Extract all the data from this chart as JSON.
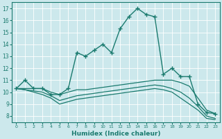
{
  "xlabel": "Humidex (Indice chaleur)",
  "bg_color": "#cce8ec",
  "line_color": "#1a7a6e",
  "grid_color": "#b0d8dc",
  "xlim": [
    -0.5,
    23.5
  ],
  "ylim": [
    7.5,
    17.5
  ],
  "xticks": [
    0,
    1,
    2,
    3,
    4,
    5,
    6,
    7,
    8,
    9,
    10,
    11,
    12,
    13,
    14,
    15,
    16,
    17,
    18,
    19,
    20,
    21,
    22,
    23
  ],
  "yticks": [
    8,
    9,
    10,
    11,
    12,
    13,
    14,
    15,
    16,
    17
  ],
  "lines": [
    {
      "x": [
        0,
        1,
        2,
        3,
        4,
        5,
        6,
        7,
        8,
        9,
        10,
        11,
        12,
        13,
        14,
        15,
        16,
        17,
        18,
        19,
        20,
        21,
        22,
        23
      ],
      "y": [
        10.3,
        11.0,
        10.3,
        10.3,
        9.8,
        9.8,
        10.3,
        13.3,
        13.0,
        13.5,
        14.0,
        13.3,
        15.3,
        16.3,
        17.0,
        16.5,
        16.3,
        11.5,
        12.0,
        11.3,
        11.3,
        9.0,
        8.3,
        8.2
      ],
      "marker": "+",
      "markersize": 4.0,
      "lw": 1.0
    },
    {
      "x": [
        0,
        1,
        2,
        3,
        4,
        5,
        6,
        7,
        8,
        9,
        10,
        11,
        12,
        13,
        14,
        15,
        16,
        17,
        18,
        19,
        20,
        21,
        22,
        23
      ],
      "y": [
        10.3,
        10.3,
        10.3,
        10.3,
        10.0,
        9.8,
        10.0,
        10.2,
        10.2,
        10.3,
        10.4,
        10.5,
        10.6,
        10.7,
        10.8,
        10.9,
        11.0,
        11.0,
        11.0,
        10.8,
        10.5,
        9.5,
        8.5,
        8.2
      ],
      "marker": null,
      "markersize": 0,
      "lw": 0.9
    },
    {
      "x": [
        0,
        1,
        2,
        3,
        4,
        5,
        6,
        7,
        8,
        9,
        10,
        11,
        12,
        13,
        14,
        15,
        16,
        17,
        18,
        19,
        20,
        21,
        22,
        23
      ],
      "y": [
        10.3,
        10.2,
        10.1,
        10.0,
        9.7,
        9.3,
        9.5,
        9.7,
        9.8,
        9.9,
        10.0,
        10.1,
        10.2,
        10.3,
        10.4,
        10.5,
        10.6,
        10.5,
        10.3,
        10.0,
        9.5,
        8.8,
        8.0,
        7.8
      ],
      "marker": null,
      "markersize": 0,
      "lw": 0.9
    },
    {
      "x": [
        0,
        1,
        2,
        3,
        4,
        5,
        6,
        7,
        8,
        9,
        10,
        11,
        12,
        13,
        14,
        15,
        16,
        17,
        18,
        19,
        20,
        21,
        22,
        23
      ],
      "y": [
        10.3,
        10.2,
        10.0,
        9.8,
        9.5,
        9.0,
        9.2,
        9.4,
        9.5,
        9.6,
        9.7,
        9.8,
        9.9,
        10.0,
        10.1,
        10.2,
        10.3,
        10.2,
        10.0,
        9.5,
        9.0,
        8.5,
        7.8,
        7.7
      ],
      "marker": null,
      "markersize": 0,
      "lw": 0.9
    }
  ]
}
